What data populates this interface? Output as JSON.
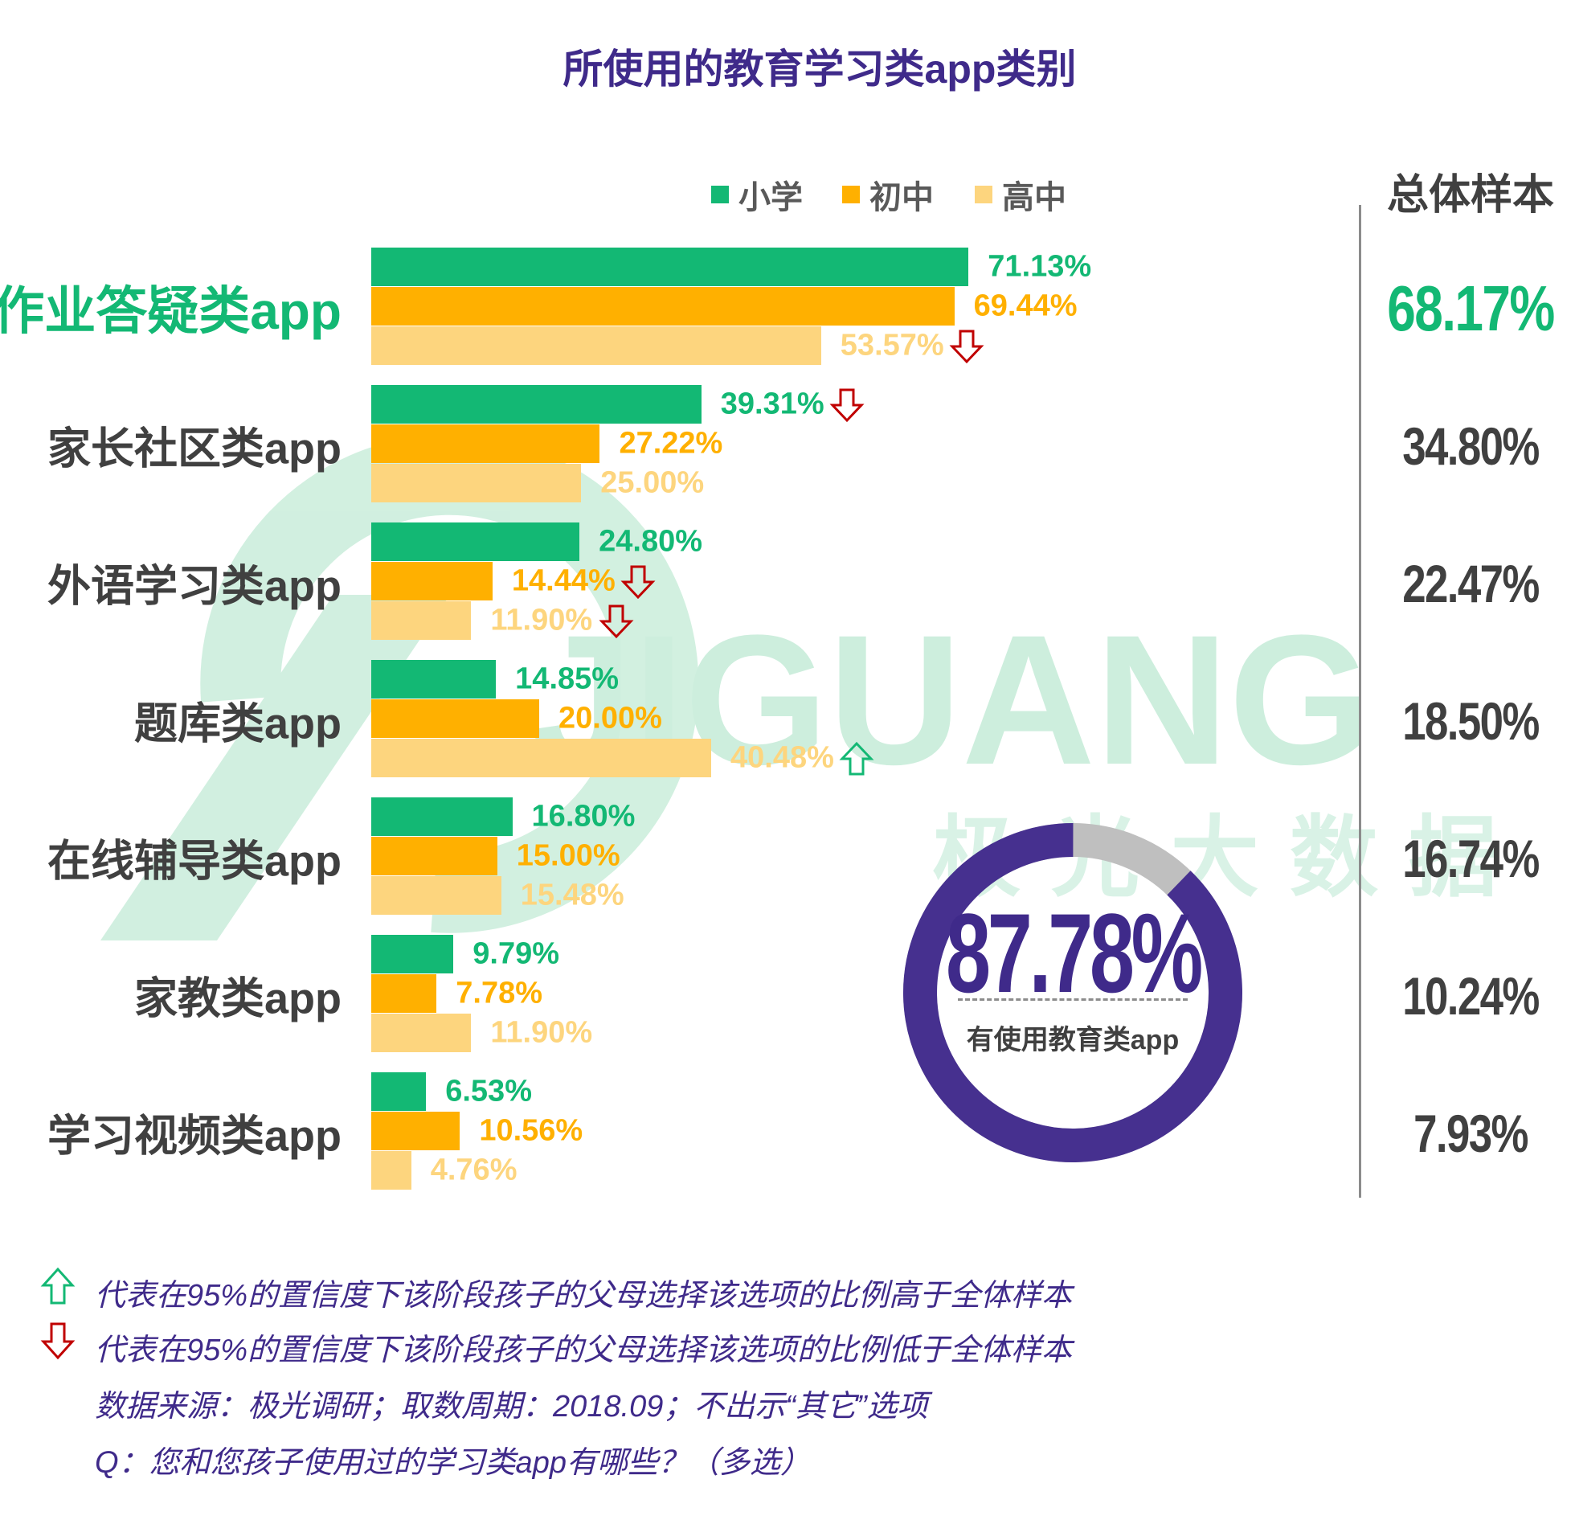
{
  "chart_data": {
    "type": "bar",
    "orientation": "horizontal",
    "title": "所使用的教育学习类app类别",
    "categories": [
      "作业答疑类app",
      "家长社区类app",
      "外语学习类app",
      "题库类app",
      "在线辅导类app",
      "家教类app",
      "学习视频类app"
    ],
    "series": [
      {
        "name": "小学",
        "color": "#13b874",
        "values": [
          71.13,
          39.31,
          24.8,
          14.85,
          16.8,
          9.79,
          6.53
        ],
        "labels": [
          "71.13%",
          "39.31%",
          "24.80%",
          "14.85%",
          "16.80%",
          "9.79%",
          "6.53%"
        ],
        "markers": [
          "",
          "down",
          "",
          "",
          "",
          "",
          ""
        ]
      },
      {
        "name": "初中",
        "color": "#ffb000",
        "values": [
          69.44,
          27.22,
          14.44,
          20.0,
          15.0,
          7.78,
          10.56
        ],
        "labels": [
          "69.44%",
          "27.22%",
          "14.44%",
          "20.00%",
          "15.00%",
          "7.78%",
          "10.56%"
        ],
        "markers": [
          "",
          "",
          "down",
          "",
          "",
          "",
          ""
        ]
      },
      {
        "name": "高中",
        "color": "#fdd57e",
        "values": [
          53.57,
          25.0,
          11.9,
          40.48,
          15.48,
          11.9,
          4.76
        ],
        "labels": [
          "53.57%",
          "25.00%",
          "11.90%",
          "40.48%",
          "15.48%",
          "11.90%",
          "4.76%"
        ],
        "markers": [
          "down",
          "",
          "down",
          "up",
          "",
          "",
          ""
        ]
      }
    ],
    "total_header": "总体样本",
    "totals": [
      "68.17%",
      "34.80%",
      "22.47%",
      "18.50%",
      "16.74%",
      "10.24%",
      "7.93%"
    ],
    "legend_position": "top",
    "xlim": [
      0,
      100
    ],
    "grid": false
  },
  "donut": {
    "value": 87.78,
    "label": "87.78%",
    "caption": "有使用教育类app",
    "color": "#46308f",
    "rest_color": "#bfbfbf"
  },
  "watermark": {
    "text": "JIGUANG",
    "subtext": "极 光 大 数 据",
    "color": "#cdeedd"
  },
  "notes": {
    "up": "代表在95%的置信度下该阶段孩子的父母选择该选项的比例高于全体样本",
    "down": "代表在95%的置信度下该阶段孩子的父母选择该选项的比例低于全体样本",
    "source": "数据来源：极光调研；取数周期：2018.09；不出示“其它”选项",
    "question": "Q：您和您孩子使用过的学习类app有哪些？（多选）"
  },
  "colors": {
    "accent": "#3f2a8a",
    "up_arrow": "#13b874",
    "down_arrow": "#c00000"
  }
}
